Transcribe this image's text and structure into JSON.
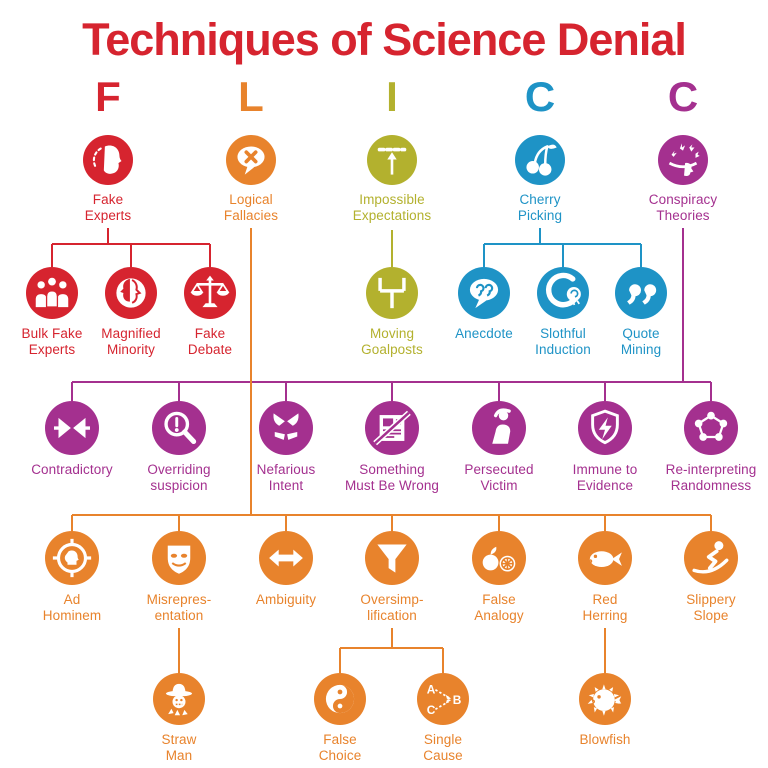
{
  "title": "Techniques of Science Denial",
  "palette": {
    "red": "#D6242F",
    "orange": "#E8832C",
    "olive": "#B3B12E",
    "blue": "#1E93C6",
    "purple": "#A4308F"
  },
  "groups": [
    {
      "id": "f",
      "letter": "F",
      "color": "red"
    },
    {
      "id": "l",
      "letter": "L",
      "color": "orange"
    },
    {
      "id": "i",
      "letter": "I",
      "color": "olive"
    },
    {
      "id": "c1",
      "letter": "C",
      "color": "blue"
    },
    {
      "id": "c2",
      "letter": "C",
      "color": "purple"
    }
  ],
  "nodes": [
    {
      "id": "fake-experts",
      "icon": "fake-experts-icon",
      "color": "red",
      "lines": [
        "Fake",
        "Experts"
      ]
    },
    {
      "id": "logical-fallacies",
      "icon": "logical-fallacies-icon",
      "color": "orange",
      "lines": [
        "Logical",
        "Fallacies"
      ]
    },
    {
      "id": "impossible-expectations",
      "icon": "impossible-expectations-icon",
      "color": "olive",
      "lines": [
        "Impossible",
        "Expectations"
      ]
    },
    {
      "id": "cherry-picking",
      "icon": "cherry-picking-icon",
      "color": "blue",
      "lines": [
        "Cherry",
        "Picking"
      ]
    },
    {
      "id": "conspiracy-theories",
      "icon": "conspiracy-theories-icon",
      "color": "purple",
      "lines": [
        "Conspiracy",
        "Theories"
      ]
    },
    {
      "id": "bulk-fake-experts",
      "icon": "bulk-fake-experts-icon",
      "color": "red",
      "lines": [
        "Bulk Fake",
        "Experts"
      ]
    },
    {
      "id": "magnified-minority",
      "icon": "magnified-minority-icon",
      "color": "red",
      "lines": [
        "Magnified",
        "Minority"
      ]
    },
    {
      "id": "fake-debate",
      "icon": "fake-debate-icon",
      "color": "red",
      "lines": [
        "Fake",
        "Debate"
      ]
    },
    {
      "id": "moving-goalposts",
      "icon": "moving-goalposts-icon",
      "color": "olive",
      "lines": [
        "Moving",
        "Goalposts"
      ]
    },
    {
      "id": "anecdote",
      "icon": "anecdote-icon",
      "color": "blue",
      "lines": [
        "Anecdote"
      ]
    },
    {
      "id": "slothful-induction",
      "icon": "slothful-induction-icon",
      "color": "blue",
      "lines": [
        "Slothful",
        "Induction"
      ]
    },
    {
      "id": "quote-mining",
      "icon": "quote-mining-icon",
      "color": "blue",
      "lines": [
        "Quote",
        "Mining"
      ]
    },
    {
      "id": "contradictory",
      "icon": "contradictory-icon",
      "color": "purple",
      "lines": [
        "Contradictory"
      ]
    },
    {
      "id": "overriding-suspicion",
      "icon": "overriding-suspicion-icon",
      "color": "purple",
      "lines": [
        "Overriding",
        "suspicion"
      ]
    },
    {
      "id": "nefarious-intent",
      "icon": "nefarious-intent-icon",
      "color": "purple",
      "lines": [
        "Nefarious",
        "Intent"
      ]
    },
    {
      "id": "something-must-be-wrong",
      "icon": "something-must-be-wrong-icon",
      "color": "purple",
      "lines": [
        "Something",
        "Must Be Wrong"
      ]
    },
    {
      "id": "persecuted-victim",
      "icon": "persecuted-victim-icon",
      "color": "purple",
      "lines": [
        "Persecuted",
        "Victim"
      ]
    },
    {
      "id": "immune-to-evidence",
      "icon": "immune-to-evidence-icon",
      "color": "purple",
      "lines": [
        "Immune to",
        "Evidence"
      ]
    },
    {
      "id": "reinterpreting-randomness",
      "icon": "reinterpreting-randomness-icon",
      "color": "purple",
      "lines": [
        "Re-interpreting",
        "Randomness"
      ]
    },
    {
      "id": "ad-hominem",
      "icon": "ad-hominem-icon",
      "color": "orange",
      "lines": [
        "Ad",
        "Hominem"
      ]
    },
    {
      "id": "misrepresentation",
      "icon": "misrepresentation-icon",
      "color": "orange",
      "lines": [
        "Misrepres-",
        "entation"
      ]
    },
    {
      "id": "ambiguity",
      "icon": "ambiguity-icon",
      "color": "orange",
      "lines": [
        "Ambiguity"
      ]
    },
    {
      "id": "oversimplification",
      "icon": "oversimplification-icon",
      "color": "orange",
      "lines": [
        "Oversimp-",
        "lification"
      ]
    },
    {
      "id": "false-analogy",
      "icon": "false-analogy-icon",
      "color": "orange",
      "lines": [
        "False",
        "Analogy"
      ]
    },
    {
      "id": "red-herring",
      "icon": "red-herring-icon",
      "color": "orange",
      "lines": [
        "Red",
        "Herring"
      ]
    },
    {
      "id": "slippery-slope",
      "icon": "slippery-slope-icon",
      "color": "orange",
      "lines": [
        "Slippery",
        "Slope"
      ]
    },
    {
      "id": "straw-man",
      "icon": "straw-man-icon",
      "color": "orange",
      "lines": [
        "Straw",
        "Man"
      ]
    },
    {
      "id": "false-choice",
      "icon": "false-choice-icon",
      "color": "orange",
      "lines": [
        "False",
        "Choice"
      ]
    },
    {
      "id": "single-cause",
      "icon": "single-cause-icon",
      "color": "orange",
      "lines": [
        "Single",
        "Cause"
      ]
    },
    {
      "id": "blowfish",
      "icon": "blowfish-icon",
      "color": "orange",
      "lines": [
        "Blowfish"
      ]
    }
  ]
}
